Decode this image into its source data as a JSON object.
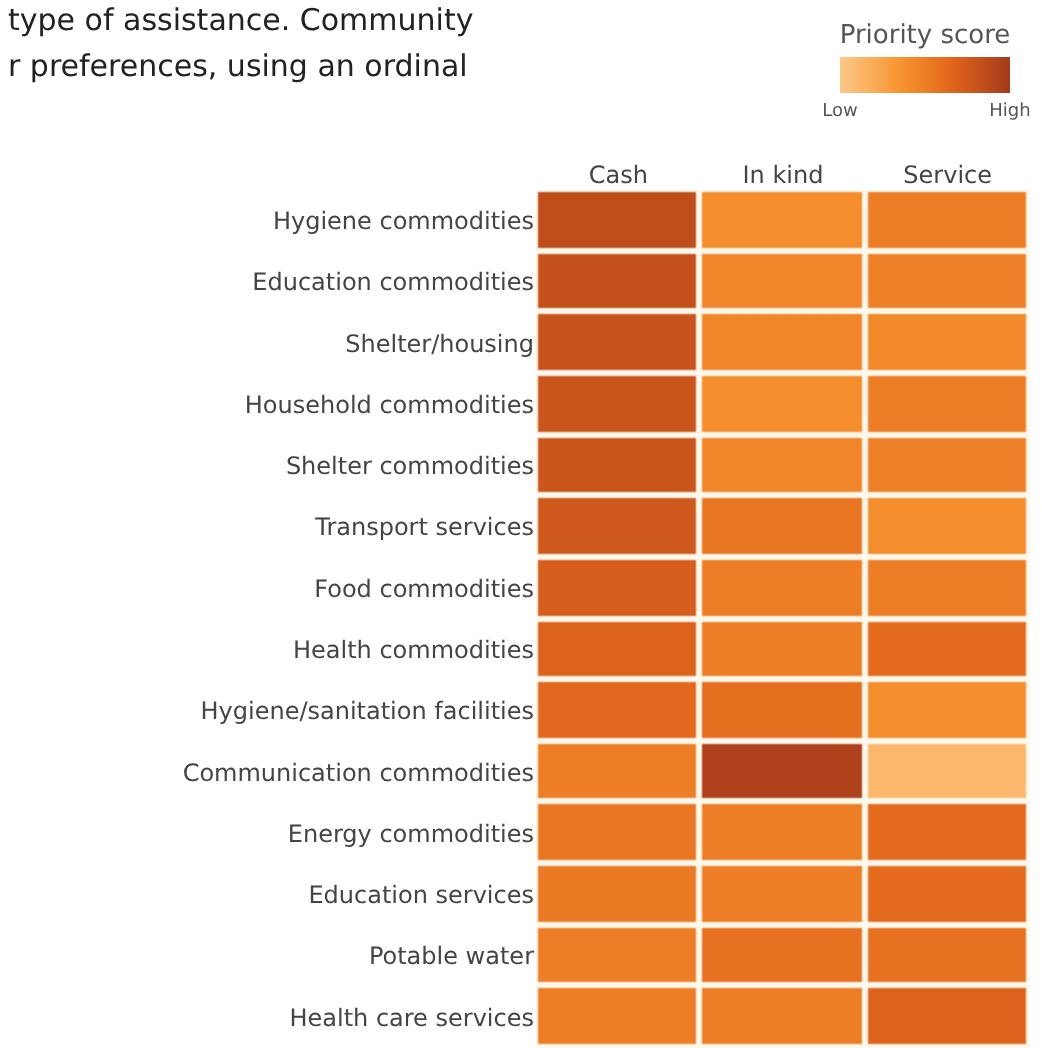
{
  "chart_data": {
    "type": "heatmap",
    "annotations": [
      "type of assistance. Community",
      "r preferences, using an ordinal"
    ],
    "clabel": "Priority score",
    "categories": [
      "Cash",
      "In kind",
      "Service"
    ],
    "y_categories": [
      "Hygiene commodities",
      "Education commodities",
      "Shelter/housing",
      "Household commodities",
      "Shelter commodities",
      "Transport services",
      "Food commodities",
      "Health commodities",
      "Hygiene/sanitation facilities",
      "Communication commodities",
      "Energy commodities",
      "Education services",
      "Potable water",
      "Health care services"
    ],
    "cells": [
      [
        0.85,
        0.4,
        0.5
      ],
      [
        0.82,
        0.45,
        0.48
      ],
      [
        0.8,
        0.45,
        0.42
      ],
      [
        0.78,
        0.4,
        0.5
      ],
      [
        0.78,
        0.45,
        0.48
      ],
      [
        0.76,
        0.55,
        0.4
      ],
      [
        0.72,
        0.5,
        0.5
      ],
      [
        0.68,
        0.5,
        0.62
      ],
      [
        0.64,
        0.6,
        0.4
      ],
      [
        0.5,
        0.95,
        0.12
      ],
      [
        0.55,
        0.5,
        0.62
      ],
      [
        0.52,
        0.5,
        0.62
      ],
      [
        0.5,
        0.58,
        0.58
      ],
      [
        0.5,
        0.5,
        0.68
      ]
    ],
    "clim": [
      0,
      1
    ],
    "cticks": [
      {
        "value": 0,
        "label": "Low"
      },
      {
        "value": 1,
        "label": "High"
      }
    ]
  }
}
